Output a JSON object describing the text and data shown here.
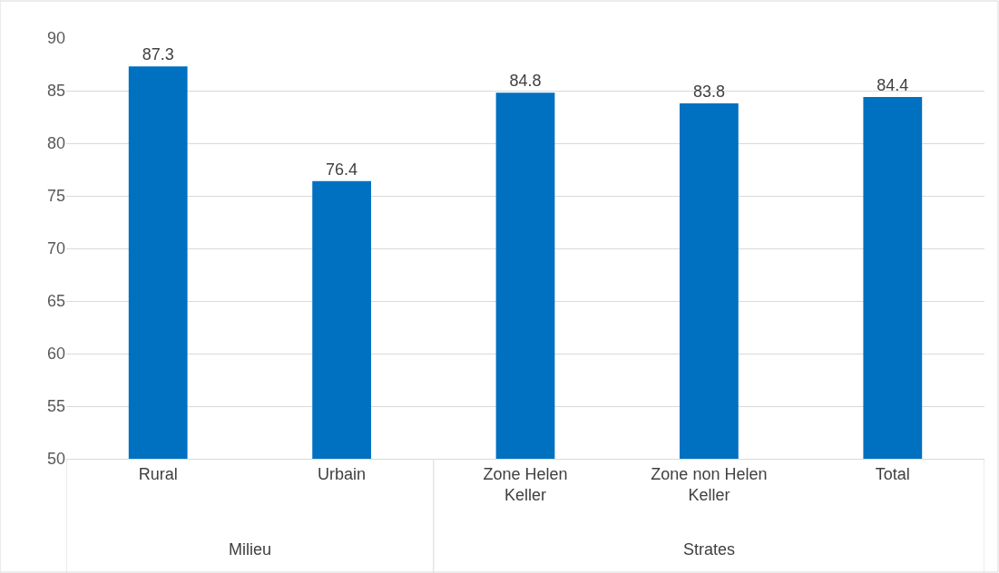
{
  "chart_data": {
    "type": "bar",
    "categories": [
      "Rural",
      "Urbain",
      "Zone Helen Keller",
      "Zone non Helen Keller",
      "Total"
    ],
    "values": [
      87.3,
      76.4,
      84.8,
      83.8,
      84.4
    ],
    "color": "#0070c0",
    "ylim": [
      50,
      90
    ],
    "yticks": [
      50,
      55,
      60,
      65,
      70,
      75,
      80,
      85,
      90
    ],
    "grid": "y",
    "data_labels": true,
    "legend": false,
    "annotations": [
      "Milieu",
      "Strates"
    ]
  }
}
